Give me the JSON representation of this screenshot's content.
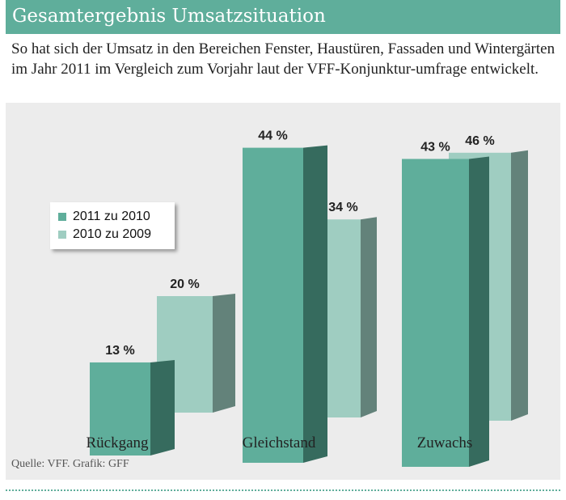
{
  "header": {
    "title": "Gesamtergebnis Umsatzsituation"
  },
  "intro": "So hat sich der Umsatz in den Bereichen Fenster, Haustüren, Fassaden und Wintergärten im Jahr 2011 im Vergleich zum Vorjahr laut der VFF-Konjunktur-umfrage entwickelt.",
  "source": "Quelle: VFF. Grafik: GFF",
  "chart_data": {
    "type": "bar",
    "title": "Gesamtergebnis Umsatzsituation",
    "categories": [
      "Rückgang",
      "Gleichstand",
      "Zuwachs"
    ],
    "series": [
      {
        "name": "2011 zu 2010",
        "values": [
          13,
          44,
          43
        ],
        "labels": [
          "13 %",
          "44 %",
          "43 %"
        ],
        "color": "#5fae9b",
        "side": "#366b5e"
      },
      {
        "name": "2010 zu 2009",
        "values": [
          20,
          34,
          46
        ],
        "labels": [
          "20 %",
          "34 %",
          "46 %"
        ],
        "color": "#9fcdc1",
        "side": "#63827a"
      }
    ],
    "legend": "left",
    "unit": "%"
  }
}
